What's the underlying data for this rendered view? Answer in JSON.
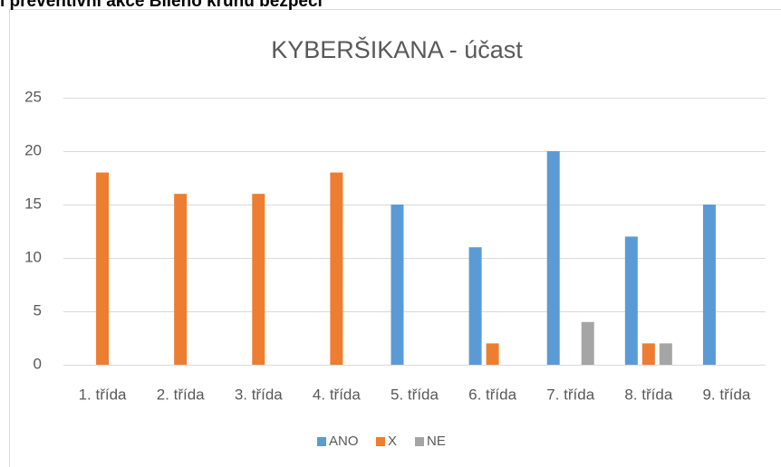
{
  "heading": "i preventivní akce Bílého kruhu bezpečí",
  "chart_data": {
    "type": "bar",
    "title": "KYBERŠIKANA - účast",
    "categories": [
      "1. třída",
      "2. třída",
      "3. třída",
      "4. třída",
      "5. třída",
      "6. třída",
      "7. třída",
      "8. třída",
      "9. třída"
    ],
    "series": [
      {
        "name": "ANO",
        "color": "#5b9bd5",
        "values": [
          0,
          0,
          0,
          0,
          15,
          11,
          20,
          12,
          15
        ]
      },
      {
        "name": "X",
        "color": "#ed7d31",
        "values": [
          18,
          16,
          16,
          18,
          0,
          2,
          0,
          2,
          0
        ]
      },
      {
        "name": "NE",
        "color": "#a5a5a5",
        "values": [
          0,
          0,
          0,
          0,
          0,
          0,
          4,
          2,
          0
        ]
      }
    ],
    "ylim": [
      0,
      25
    ],
    "yticks": [
      0,
      5,
      10,
      15,
      20,
      25
    ],
    "grid": true,
    "legend": "bottom"
  }
}
